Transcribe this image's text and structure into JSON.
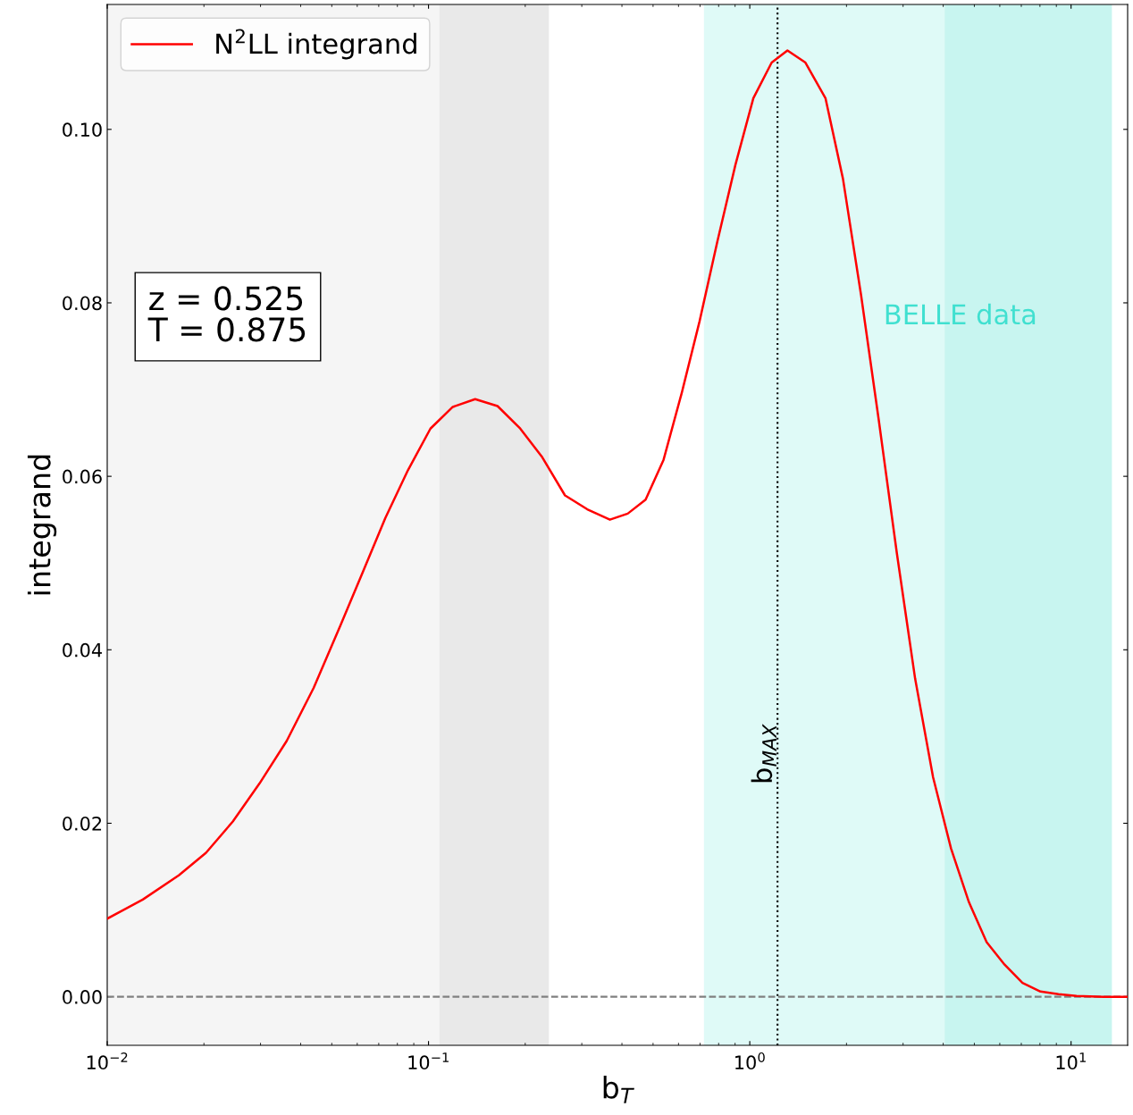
{
  "chart_data": {
    "type": "line",
    "xlabel": "b$_{T}$",
    "ylabel": "integrand",
    "log": "x",
    "xlim": [
      0.01,
      15
    ],
    "ylim": [
      -0.0056,
      0.1144
    ],
    "xticks": [
      {
        "value": 0.01,
        "label": "10$^{−2}$"
      },
      {
        "value": 0.1,
        "label": "10$^{−1}$"
      },
      {
        "value": 1,
        "label": "10$^{0}$"
      },
      {
        "value": 10,
        "label": "10$^{1}$"
      }
    ],
    "yticks": [
      {
        "value": 0,
        "label": "0.00"
      },
      {
        "value": 0.02,
        "label": "0.02"
      },
      {
        "value": 0.04,
        "label": "0.04"
      },
      {
        "value": 0.06,
        "label": "0.06"
      },
      {
        "value": 0.08,
        "label": "0.08"
      },
      {
        "value": 0.1,
        "label": "0.10"
      }
    ],
    "series": [
      {
        "name": "N$^{2}$LL integrand",
        "color": "#ff0000",
        "x": [
          0.01,
          0.0129,
          0.0167,
          0.0203,
          0.0246,
          0.0298,
          0.0362,
          0.0439,
          0.0532,
          0.0625,
          0.0734,
          0.0863,
          0.1014,
          0.119,
          0.1397,
          0.164,
          0.193,
          0.226,
          0.266,
          0.312,
          0.367,
          0.417,
          0.474,
          0.539,
          0.614,
          0.698,
          0.793,
          0.902,
          1.026,
          1.17,
          1.31,
          1.49,
          1.72,
          1.95,
          2.22,
          2.52,
          2.87,
          3.27,
          3.72,
          4.23,
          4.81,
          5.46,
          6.21,
          7.06,
          8.03,
          9.14,
          10.4,
          12.6,
          15
        ],
        "values": [
          0.009,
          0.0112,
          0.014,
          0.0166,
          0.0202,
          0.0246,
          0.0295,
          0.0356,
          0.0428,
          0.049,
          0.0552,
          0.0607,
          0.0655,
          0.068,
          0.0689,
          0.0681,
          0.0655,
          0.0622,
          0.0578,
          0.0562,
          0.055,
          0.0557,
          0.0573,
          0.0619,
          0.0696,
          0.0779,
          0.0871,
          0.0959,
          0.1036,
          0.1077,
          0.1091,
          0.1077,
          0.1036,
          0.0943,
          0.0809,
          0.0665,
          0.0511,
          0.0367,
          0.0253,
          0.0171,
          0.0109,
          0.0063,
          0.0037,
          0.0016,
          0.0006,
          0.0003,
          0.0001,
          0.0,
          0.0
        ]
      }
    ],
    "bands": [
      {
        "axis": "x",
        "from": 0.01,
        "to": 0.108,
        "color": "#f5f5f5"
      },
      {
        "axis": "x",
        "from": 0.108,
        "to": 0.237,
        "color": "#e9e9e9"
      },
      {
        "axis": "x",
        "from": 0.72,
        "to": 4.04,
        "color": "#40e0d0",
        "label": "BELLE data"
      },
      {
        "axis": "x",
        "from": 4.04,
        "to": 13.4,
        "color": "#c8f5f0"
      }
    ],
    "ref_lines": [
      {
        "axis": "y",
        "value": 0,
        "color": "#808080",
        "line_style": "dashed"
      },
      {
        "axis": "x",
        "value": 1.22,
        "color": "#000000",
        "line_style": "dotted",
        "label": "b$_{MAX}$"
      }
    ],
    "annotations": [
      "z = 0.525\nT = 0.875"
    ],
    "legend": "top left",
    "grid": false,
    "marker": "none",
    "line_style": "solid"
  }
}
